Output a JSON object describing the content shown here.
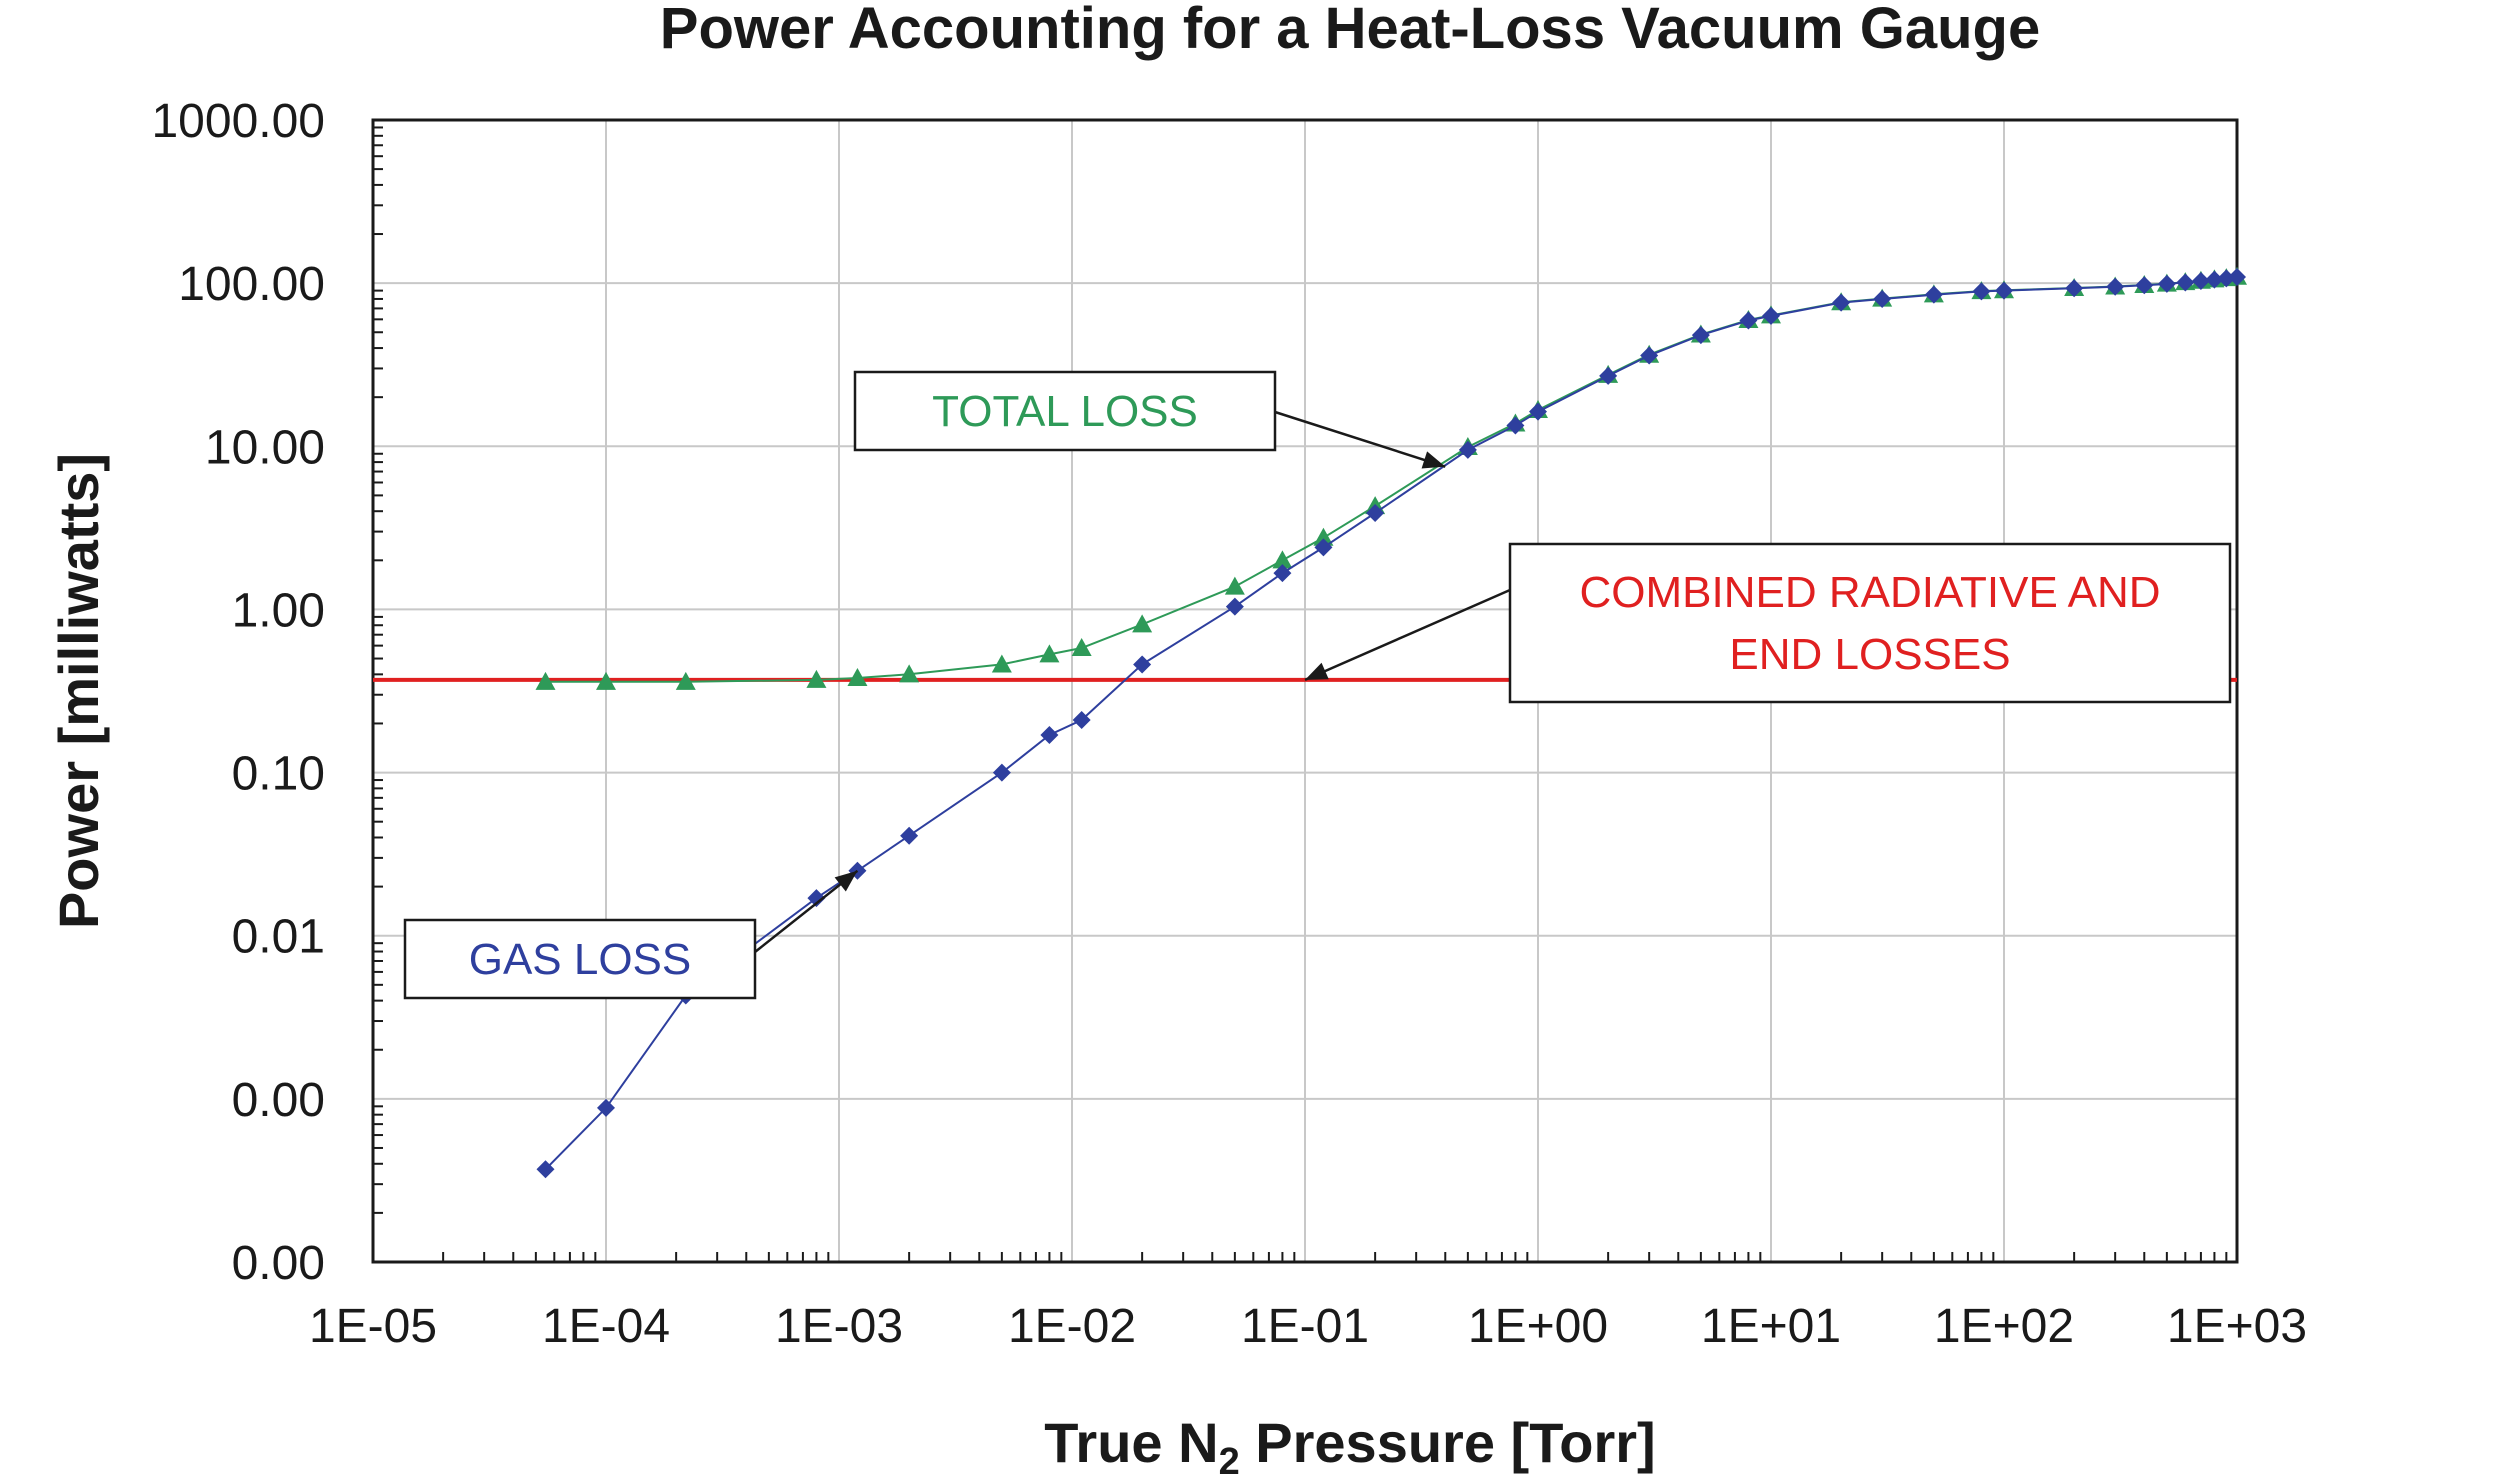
{
  "chart_data": {
    "type": "line",
    "title": "Power Accounting for a Heat-Loss Vacuum Gauge",
    "xlabel_parts": [
      "True N",
      "2",
      " Pressure [Torr]"
    ],
    "ylabel": "Power [milliwatts]",
    "x_scale": "log",
    "y_scale": "log",
    "xlim": [
      1e-05,
      1000
    ],
    "ylim": [
      0.0001,
      1000
    ],
    "grid": true,
    "x_tick_values": [
      1e-05,
      0.0001,
      0.001,
      0.01,
      0.1,
      1,
      10,
      100,
      1000
    ],
    "x_tick_labels": [
      "1E-05",
      "1E-04",
      "1E-03",
      "1E-02",
      "1E-01",
      "1E+00",
      "1E+01",
      "1E+02",
      "1E+03"
    ],
    "y_tick_values": [
      0.0001,
      0.001,
      0.01,
      0.1,
      1,
      10,
      100,
      1000
    ],
    "y_tick_labels": [
      "0.00",
      "0.00",
      "0.01",
      "0.10",
      "1.00",
      "10.00",
      "100.00",
      "1000.00"
    ],
    "series": [
      {
        "color": "#2e3f9e",
        "marker": "diamond",
        "x": [
          5.5e-05,
          0.0001,
          0.00022,
          0.0008,
          0.0012,
          0.002,
          0.005,
          0.008,
          0.011,
          0.02,
          0.05,
          0.08,
          0.12,
          0.2,
          0.5,
          0.8,
          1,
          2,
          3,
          5,
          8,
          10,
          20,
          30,
          50,
          80,
          100,
          200,
          300,
          400,
          500,
          600,
          700,
          800,
          900,
          1000
        ],
        "y": [
          0.00037,
          0.00088,
          0.0043,
          0.017,
          0.025,
          0.041,
          0.1,
          0.17,
          0.21,
          0.46,
          1.04,
          1.67,
          2.4,
          3.9,
          9.5,
          13.4,
          16.3,
          27,
          36,
          48,
          59,
          63,
          76,
          80,
          85,
          89,
          90,
          93,
          95,
          97,
          99,
          101,
          103,
          105,
          107,
          109
        ]
      },
      {
        "color": "#2e9a58",
        "marker": "triangle",
        "x": [
          5.5e-05,
          0.0001,
          0.00022,
          0.0008,
          0.0012,
          0.002,
          0.005,
          0.008,
          0.011,
          0.02,
          0.05,
          0.08,
          0.12,
          0.2,
          0.5,
          0.8,
          1,
          2,
          3,
          5,
          8,
          10,
          20,
          30,
          50,
          80,
          100,
          200,
          300,
          400,
          500,
          600,
          700,
          800,
          900,
          1000
        ],
        "y": [
          0.36,
          0.36,
          0.36,
          0.37,
          0.38,
          0.4,
          0.46,
          0.53,
          0.58,
          0.81,
          1.38,
          2.0,
          2.75,
          4.3,
          9.9,
          13.8,
          16.7,
          27.4,
          36.4,
          48.4,
          59.4,
          63.4,
          76.4,
          80.4,
          85.4,
          89.4,
          90.4,
          93.4,
          95.4,
          97.4,
          99.4,
          101.4,
          103.4,
          105.4,
          107.4,
          109.4
        ]
      },
      {
        "color": "#e02020",
        "marker": "none",
        "x": [
          1e-05,
          1000
        ],
        "y": [
          0.37,
          0.37
        ]
      }
    ],
    "annotations": [
      {
        "lines": [
          "TOTAL LOSS"
        ],
        "color": "#2e9a58",
        "arrow_to": [
          0.4,
          7.5
        ]
      },
      {
        "lines": [
          "COMBINED RADIATIVE AND",
          "END LOSSES"
        ],
        "color": "#e02020",
        "arrow_to": [
          0.1,
          0.37
        ]
      },
      {
        "lines": [
          "GAS LOSS"
        ],
        "color": "#2e3f9e",
        "arrow_to": [
          0.0012,
          0.025
        ]
      }
    ]
  }
}
